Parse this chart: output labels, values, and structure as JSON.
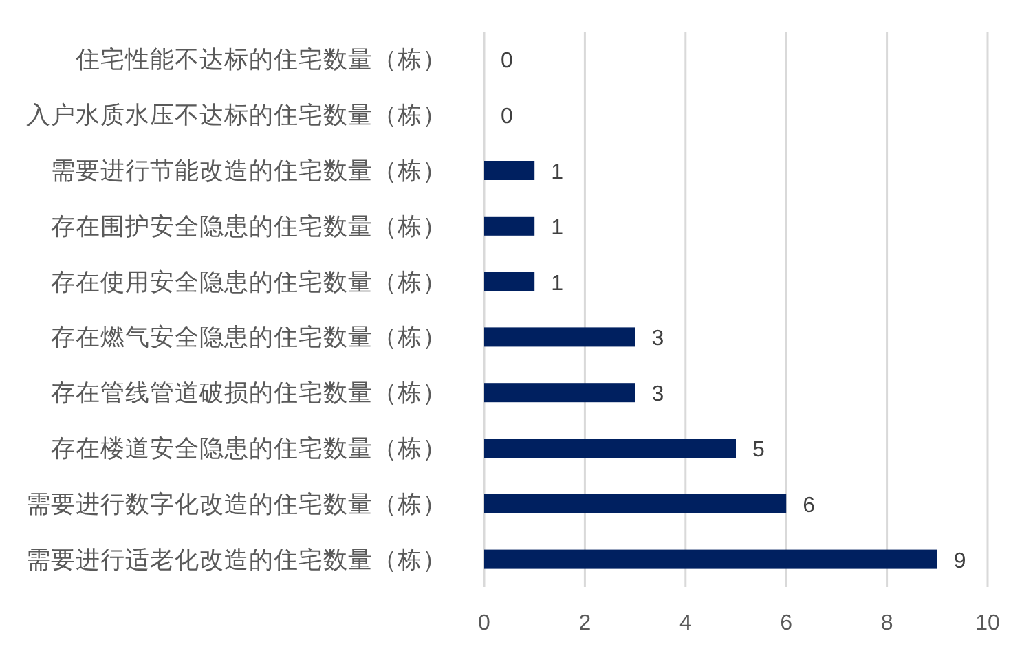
{
  "chart_data": {
    "type": "bar",
    "orientation": "horizontal",
    "categories": [
      "住宅性能不达标的住宅数量（栋）",
      "入户水质水压不达标的住宅数量（栋）",
      "需要进行节能改造的住宅数量（栋）",
      "存在围护安全隐患的住宅数量（栋）",
      "存在使用安全隐患的住宅数量（栋）",
      "存在燃气安全隐患的住宅数量（栋）",
      "存在管线管道破损的住宅数量（栋）",
      "存在楼道安全隐患的住宅数量（栋）",
      "需要进行数字化改造的住宅数量（栋）",
      "需要进行适老化改造的住宅数量（栋）"
    ],
    "values": [
      0,
      0,
      1,
      1,
      1,
      3,
      3,
      5,
      6,
      9
    ],
    "color": "#002060",
    "xlim": [
      0,
      10
    ],
    "xticks": [
      0,
      2,
      4,
      6,
      8,
      10
    ],
    "grid": "x",
    "data_labels": true
  }
}
